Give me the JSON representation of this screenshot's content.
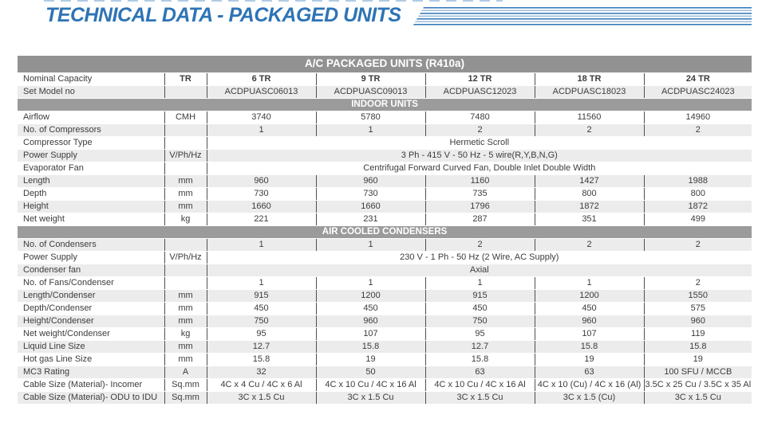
{
  "page_title": "TECHNICAL DATA - PACKAGED UNITS",
  "colors": {
    "title_blue": "#2e74b5",
    "stripe_light_blue": "#9dbdd8",
    "header_gray": "#929292",
    "section_gray": "#9b9b9b",
    "shaded_row": "#ececec",
    "column_border": "#4f4f4f",
    "text": "#3c3c3c"
  },
  "table": {
    "title": "A/C PACKAGED UNITS (R410a)",
    "rows": [
      {
        "label": "Nominal Capacity",
        "unit": "TR",
        "bold": true,
        "values": [
          "6 TR",
          "9 TR",
          "12 TR",
          "18 TR",
          "24 TR"
        ]
      },
      {
        "label": "Set Model no",
        "unit": "",
        "values": [
          "ACDPUASC06013",
          "ACDPUASC09013",
          "ACDPUASC12023",
          "ACDPUASC18023",
          "ACDPUASC24023"
        ]
      },
      {
        "section": "INDOOR UNITS"
      },
      {
        "label": "Airflow",
        "unit": "CMH",
        "values": [
          "3740",
          "5780",
          "7480",
          "11560",
          "14960"
        ]
      },
      {
        "label": "No. of Compressors",
        "unit": "",
        "values": [
          "1",
          "1",
          "2",
          "2",
          "2"
        ]
      },
      {
        "label": "Compressor Type",
        "unit": "",
        "span": "Hermetic Scroll"
      },
      {
        "label": "Power Supply",
        "unit": "V/Ph/Hz",
        "span": "3 Ph - 415 V - 50 Hz - 5 wire(R,Y,B,N,G)"
      },
      {
        "label": "Evaporator Fan",
        "unit": "",
        "span": "Centrifugal Forward Curved Fan, Double Inlet Double Width"
      },
      {
        "label": "Length",
        "unit": "mm",
        "values": [
          "960",
          "960",
          "1160",
          "1427",
          "1988"
        ]
      },
      {
        "label": "Depth",
        "unit": "mm",
        "values": [
          "730",
          "730",
          "735",
          "800",
          "800"
        ]
      },
      {
        "label": "Height",
        "unit": "mm",
        "values": [
          "1660",
          "1660",
          "1796",
          "1872",
          "1872"
        ]
      },
      {
        "label": "Net weight",
        "unit": "kg",
        "values": [
          "221",
          "231",
          "287",
          "351",
          "499"
        ]
      },
      {
        "section": "AIR COOLED CONDENSERS"
      },
      {
        "label": "No. of Condensers",
        "unit": "",
        "values": [
          "1",
          "1",
          "2",
          "2",
          "2"
        ]
      },
      {
        "label": "Power Supply",
        "unit": "V/Ph/Hz",
        "span": "230 V - 1 Ph - 50 Hz (2 Wire, AC Supply)"
      },
      {
        "label": "Condenser fan",
        "unit": "",
        "span": "Axial"
      },
      {
        "label": "No. of Fans/Condenser",
        "unit": "",
        "values": [
          "1",
          "1",
          "1",
          "1",
          "2"
        ]
      },
      {
        "label": "Length/Condenser",
        "unit": "mm",
        "values": [
          "915",
          "1200",
          "915",
          "1200",
          "1550"
        ]
      },
      {
        "label": "Depth/Condenser",
        "unit": "mm",
        "values": [
          "450",
          "450",
          "450",
          "450",
          "575"
        ]
      },
      {
        "label": "Height/Condenser",
        "unit": "mm",
        "values": [
          "750",
          "960",
          "750",
          "960",
          "960"
        ]
      },
      {
        "label": "Net weight/Condenser",
        "unit": "kg",
        "values": [
          "95",
          "107",
          "95",
          "107",
          "119"
        ]
      },
      {
        "label": "Liquid Line Size",
        "unit": "mm",
        "values": [
          "12.7",
          "15.8",
          "12.7",
          "15.8",
          "15.8"
        ]
      },
      {
        "label": "Hot gas Line Size",
        "unit": "mm",
        "values": [
          "15.8",
          "19",
          "15.8",
          "19",
          "19"
        ]
      },
      {
        "label": "MC3 Rating",
        "unit": "A",
        "values": [
          "32",
          "50",
          "63",
          "63",
          "100 SFU / MCCB"
        ]
      },
      {
        "label": "Cable Size (Material)- Incomer",
        "unit": "Sq.mm",
        "values": [
          "4C x 4 Cu / 4C x 6 Al",
          "4C x 10 Cu / 4C x 16 Al",
          "4C x 10 Cu / 4C x 16 Al",
          "4C x 10 (Cu) / 4C x 16 (Al)",
          "3.5C x 25 Cu / 3.5C x 35 Al"
        ]
      },
      {
        "label": "Cable Size (Material)- ODU to IDU",
        "unit": "Sq.mm",
        "values": [
          "3C x 1.5 Cu",
          "3C x 1.5 Cu",
          "3C x 1.5 Cu",
          "3C x 1.5 (Cu)",
          "3C x 1.5 Cu"
        ]
      }
    ]
  }
}
